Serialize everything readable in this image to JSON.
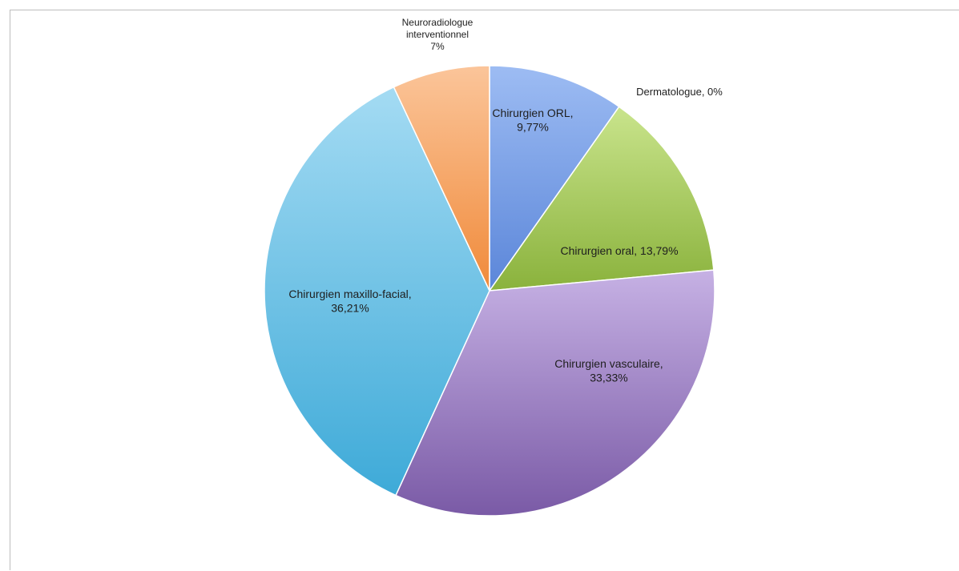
{
  "chart_data": {
    "type": "pie",
    "title": "",
    "slices": [
      {
        "label": "Chirurgien ORL",
        "value": 9.77,
        "display": "9,77%",
        "color": "#5b86d9",
        "color_light": "#9dbcf3",
        "label_lines": [
          "Chirurgien ORL,",
          "9,77%"
        ]
      },
      {
        "label": "Dermatologue",
        "value": 0,
        "display": "0%",
        "color": "#9a9a9a",
        "color_light": "#cfcfcf",
        "label_lines": [
          "Dermatologue, 0%"
        ]
      },
      {
        "label": "Chirurgien oral",
        "value": 13.79,
        "display": "13,79%",
        "color": "#8ab23c",
        "color_light": "#c9e48c",
        "label_lines": [
          "Chirurgien oral, 13,79%"
        ]
      },
      {
        "label": "Chirurgien vasculaire",
        "value": 33.33,
        "display": "33,33%",
        "color": "#7a5aa6",
        "color_light": "#c6b1e4",
        "label_lines": [
          "Chirurgien vasculaire,",
          "33,33%"
        ]
      },
      {
        "label": "Chirurgien maxillo-facial",
        "value": 36.21,
        "display": "36,21%",
        "color": "#3eaad8",
        "color_light": "#a4dbf3",
        "label_lines": [
          "Chirurgien maxillo-facial,",
          "36,21%"
        ]
      },
      {
        "label": "Neuroradiologue interventionnel",
        "value": 7,
        "display": "7%",
        "color": "#f08a3a",
        "color_light": "#fbc59a",
        "label_lines": [
          "Neuroradiologue",
          "interventionnel",
          "7%"
        ]
      }
    ]
  }
}
